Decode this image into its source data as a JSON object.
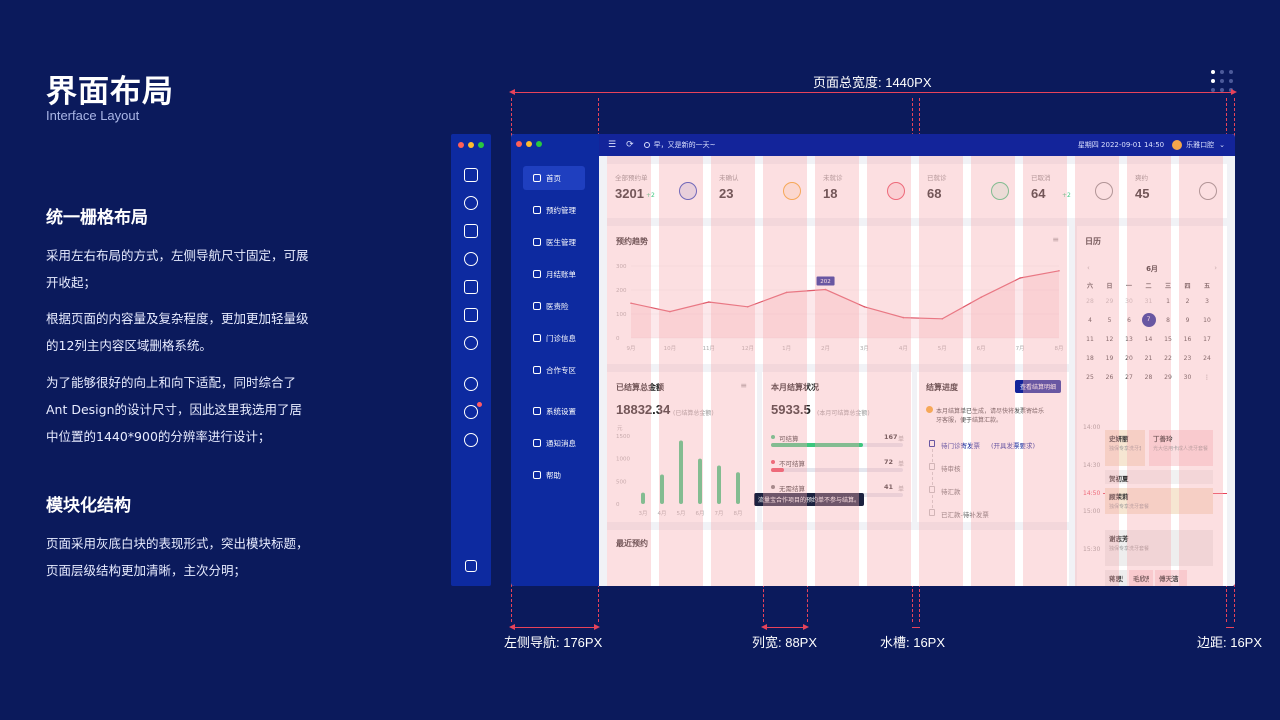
{
  "heading": {
    "title": "界面布局",
    "subtitle": "Interface Layout"
  },
  "section1": {
    "title": "统一栅格布局",
    "p1": [
      "采用左右布局的方式，左侧导航尺寸固定，可展",
      "开收起；"
    ],
    "p2": [
      "根据页面的内容量及复杂程度，更加更加轻量级",
      "的12列主内容区域删格系统。"
    ],
    "p3": [
      "为了能够很好的向上和向下适配，同时综合了",
      "Ant  Design的设计尺寸，因此这里我选用了居",
      "中位置的1440*900的分辨率进行设计；"
    ]
  },
  "section2": {
    "title": "模块化结构",
    "p1": [
      "页面采用灰底白块的表现形式，突出模块标题，",
      "页面层级结构更加清晰，主次分明；"
    ]
  },
  "annotations": {
    "total_width": "页面总宽度: 1440PX",
    "left_nav": "左侧导航: 176PX",
    "column": "列宽: 88PX",
    "gutter": "水槽: 16PX",
    "margin": "边距: 16PX",
    "accent": "#e8435a"
  },
  "app": {
    "colors": {
      "nav": "#0d2aa0",
      "topbar": "#13249a",
      "accent": "#e05a6a",
      "green": "#3cc77e"
    },
    "nav_items": [
      {
        "label": "首页",
        "icon": "home-icon"
      },
      {
        "label": "预约管理",
        "icon": "clock-icon"
      },
      {
        "label": "医生管理",
        "icon": "doctor-icon"
      },
      {
        "label": "月结账单",
        "icon": "bill-icon"
      },
      {
        "label": "医责险",
        "icon": "shield-icon"
      },
      {
        "label": "门诊信息",
        "icon": "building-icon"
      },
      {
        "label": "合作专区",
        "icon": "handshake-icon"
      },
      {
        "label": "系统设置",
        "icon": "gear-icon"
      },
      {
        "label": "通知消息",
        "icon": "bell-icon"
      },
      {
        "label": "帮助",
        "icon": "help-icon"
      }
    ],
    "topbar": {
      "greeting": "早，又是新的一天~",
      "datetime": "星期四 2022-09-01 14:50",
      "clinic": "乐雅口腔"
    },
    "stats": [
      {
        "label": "全部预约单",
        "value": "3201",
        "delta": "+2"
      },
      {
        "label": "未确认",
        "value": "23"
      },
      {
        "label": "未就诊",
        "value": "18"
      },
      {
        "label": "已就诊",
        "value": "68"
      },
      {
        "label": "已取消",
        "value": "64",
        "delta": "+2"
      },
      {
        "label": "爽约",
        "value": "45"
      }
    ],
    "trend": {
      "title": "预约趋势",
      "tooltip": "202"
    },
    "chart_data": [
      {
        "type": "line",
        "title": "预约趋势",
        "x": [
          "9月",
          "10月",
          "11月",
          "12月",
          "1月",
          "2月",
          "3月",
          "4月",
          "5月",
          "6月",
          "7月",
          "8月"
        ],
        "values": [
          145,
          110,
          150,
          130,
          190,
          202,
          130,
          85,
          80,
          170,
          250,
          280
        ],
        "ylim": [
          0,
          300
        ],
        "yticks": [
          "300",
          "200",
          "100",
          "0"
        ],
        "highlight": {
          "x": "2月",
          "value": 202
        }
      },
      {
        "type": "bar",
        "title": "已结算总金额",
        "categories": [
          "3月",
          "4月",
          "5月",
          "6月",
          "7月",
          "8月"
        ],
        "values": [
          250,
          650,
          1400,
          1000,
          850,
          700
        ],
        "ylim": [
          0,
          1500
        ],
        "yticks": [
          "1500",
          "1000",
          "500",
          "0"
        ],
        "ylabel": "元"
      }
    ],
    "settled": {
      "title": "已结算总金额",
      "value": "18832.34",
      "note": "(已结算总金额)"
    },
    "monthly": {
      "title": "本月结算状况",
      "value": "5933.5",
      "note": "(本月可结算总金额)",
      "rows": [
        {
          "label": "可结算",
          "count": "167",
          "unit": "单",
          "fill": 0.7,
          "color": "#3cc77e"
        },
        {
          "label": "不可结算",
          "count": "72",
          "unit": "单",
          "fill": 0.1,
          "color": "#e8435a"
        },
        {
          "label": "无需结算",
          "count": "41",
          "unit": "单",
          "fill": 0.22,
          "color": "#777"
        }
      ],
      "tooltip": "流量宝合作项目的预约单不参与结算。"
    },
    "progress": {
      "title": "结算进度",
      "button": "查看结算明细",
      "notice": [
        "本月结算单已生成，请尽快将发票寄给乐",
        "牙客服，便于结算汇款。"
      ],
      "steps": [
        "待门诊寄发票",
        "待审核",
        "待汇款",
        "已汇款-待补发票"
      ],
      "step_link": "(开具发票要求)"
    },
    "recent": {
      "title": "最近预约"
    },
    "calendar": {
      "title": "日历",
      "month": "6月",
      "weekdays": [
        "六",
        "日",
        "一",
        "二",
        "三",
        "四",
        "五"
      ],
      "days": [
        [
          "28",
          "29",
          "30",
          "31",
          "1",
          "2",
          "3"
        ],
        [
          "4",
          "5",
          "6",
          "7",
          "8",
          "9",
          "10"
        ],
        [
          "11",
          "12",
          "13",
          "14",
          "15",
          "16",
          "17"
        ],
        [
          "18",
          "19",
          "20",
          "21",
          "22",
          "23",
          "24"
        ],
        [
          "25",
          "26",
          "27",
          "28",
          "29",
          "30",
          "⋮"
        ]
      ],
      "today": "7"
    },
    "schedule": {
      "times": [
        "14:00",
        "14:30",
        "14:50",
        "15:00",
        "15:30"
      ],
      "items": [
        {
          "name": "史妍丽",
          "detail": "独保专享洗牙套餐"
        },
        {
          "name": "丁善玲",
          "detail": "光大信用卡成人洗牙套餐"
        },
        {
          "name": "贺初夏",
          "detail": ""
        },
        {
          "name": "顾茉莉",
          "detail": "独保专享洗牙套餐"
        },
        {
          "name": "谢志芳",
          "detail": "独保专享洗牙套餐"
        },
        {
          "name": "蒋思莲",
          "detail": ""
        },
        {
          "name": "毛欣彤",
          "detail": ""
        },
        {
          "name": "傅天洁",
          "detail": ""
        }
      ]
    }
  }
}
